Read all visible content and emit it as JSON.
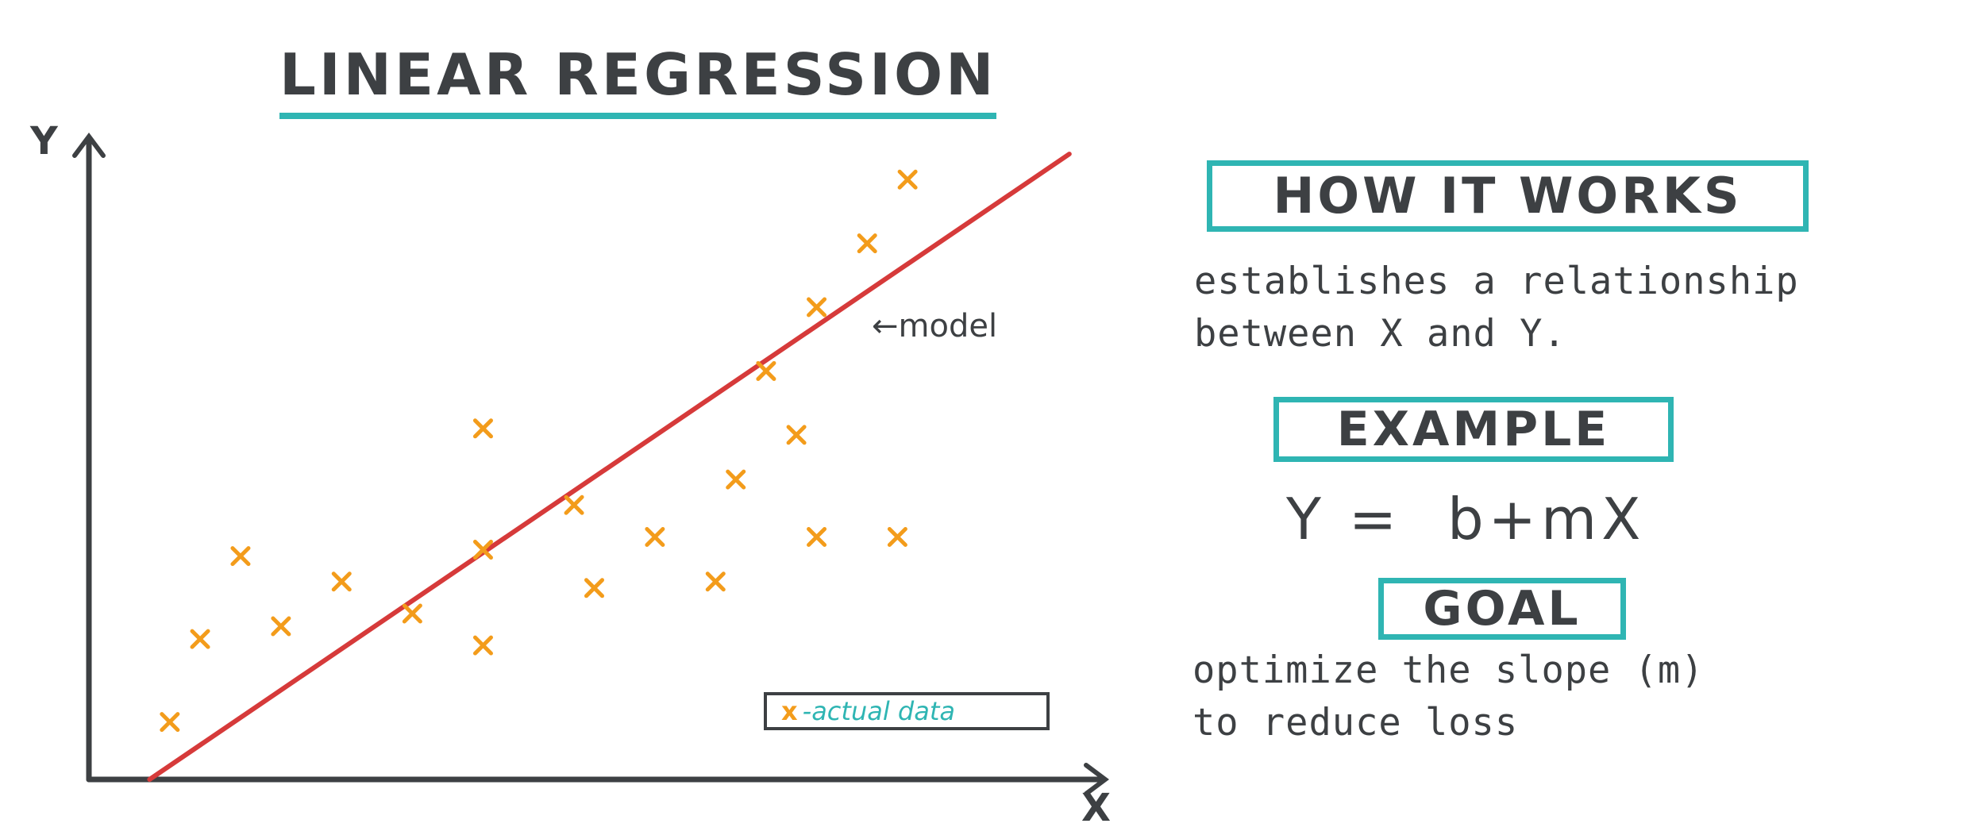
{
  "title": "LINEAR REGRESSION",
  "sections": {
    "how_it_works": {
      "heading": "HOW IT WORKS",
      "text_line1": "establishes a relationship",
      "text_line2": "between X and Y."
    },
    "example": {
      "heading": "EXAMPLE",
      "formula": "Y =  b+mX"
    },
    "goal": {
      "heading": "GOAL",
      "text_line1": "optimize the slope (m)",
      "text_line2": "to reduce loss"
    }
  },
  "colors": {
    "accent": "#2fb5b3",
    "line": "#d63a3a",
    "points": "#f39c1b",
    "ink": "#3d4043"
  },
  "chart_data": {
    "type": "scatter",
    "xlabel": "X",
    "ylabel": "Y",
    "xlim": [
      0,
      100
    ],
    "ylim": [
      0,
      100
    ],
    "grid": false,
    "legend": {
      "placement": "bottom-right",
      "marker": "x",
      "label": "-actual data"
    },
    "model_label": "←model",
    "points": [
      {
        "x": 8,
        "y": 9
      },
      {
        "x": 11,
        "y": 22
      },
      {
        "x": 15,
        "y": 35
      },
      {
        "x": 19,
        "y": 24
      },
      {
        "x": 25,
        "y": 31
      },
      {
        "x": 32,
        "y": 26
      },
      {
        "x": 39,
        "y": 21
      },
      {
        "x": 39,
        "y": 36
      },
      {
        "x": 39,
        "y": 55
      },
      {
        "x": 48,
        "y": 43
      },
      {
        "x": 50,
        "y": 30
      },
      {
        "x": 56,
        "y": 38
      },
      {
        "x": 62,
        "y": 31
      },
      {
        "x": 64,
        "y": 47
      },
      {
        "x": 67,
        "y": 64
      },
      {
        "x": 70,
        "y": 54
      },
      {
        "x": 72,
        "y": 38
      },
      {
        "x": 72,
        "y": 74
      },
      {
        "x": 77,
        "y": 84
      },
      {
        "x": 80,
        "y": 38
      },
      {
        "x": 81,
        "y": 94
      }
    ],
    "line": {
      "x1": 6,
      "y1": 0,
      "x2": 97,
      "y2": 98
    }
  }
}
